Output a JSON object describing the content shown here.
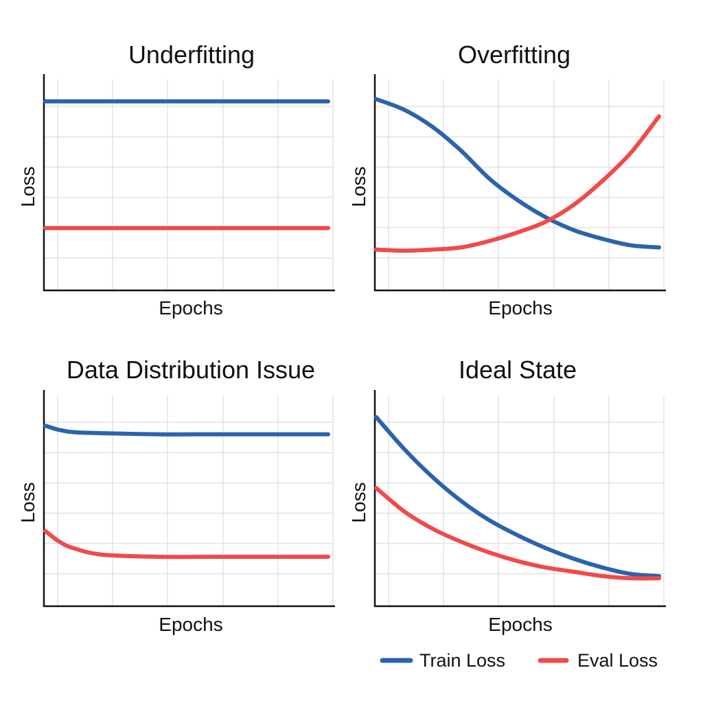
{
  "colors": {
    "train": "#2b63ad",
    "eval": "#f04a4a"
  },
  "legend": {
    "train_label": "Train Loss",
    "eval_label": "Eval Loss"
  },
  "chart_data": [
    {
      "type": "line",
      "title": "Underfitting",
      "xlabel": "Epochs",
      "ylabel": "Loss",
      "grid": true,
      "xlim": [
        0,
        10
      ],
      "ylim": [
        0,
        1
      ],
      "series": [
        {
          "name": "Train Loss",
          "x": [
            0,
            2,
            4,
            6,
            8,
            10
          ],
          "values": [
            0.88,
            0.88,
            0.88,
            0.88,
            0.88,
            0.88
          ]
        },
        {
          "name": "Eval Loss",
          "x": [
            0,
            2,
            4,
            6,
            8,
            10
          ],
          "values": [
            0.29,
            0.29,
            0.29,
            0.29,
            0.29,
            0.29
          ]
        }
      ]
    },
    {
      "type": "line",
      "title": "Overfitting",
      "xlabel": "Epochs",
      "ylabel": "Loss",
      "grid": true,
      "xlim": [
        0,
        10
      ],
      "ylim": [
        0,
        1
      ],
      "series": [
        {
          "name": "Train Loss",
          "x": [
            0,
            1,
            2,
            3,
            4,
            5,
            6,
            7,
            8,
            9,
            10
          ],
          "values": [
            0.89,
            0.84,
            0.76,
            0.65,
            0.52,
            0.42,
            0.34,
            0.28,
            0.24,
            0.21,
            0.2
          ]
        },
        {
          "name": "Eval Loss",
          "x": [
            0,
            1,
            2,
            3,
            4,
            5,
            6,
            7,
            8,
            9,
            10
          ],
          "values": [
            0.19,
            0.185,
            0.19,
            0.2,
            0.23,
            0.27,
            0.32,
            0.4,
            0.51,
            0.64,
            0.81
          ]
        }
      ]
    },
    {
      "type": "line",
      "title": "Data Distribution Issue",
      "xlabel": "Epochs",
      "ylabel": "Loss",
      "grid": true,
      "xlim": [
        0,
        10
      ],
      "ylim": [
        0,
        1
      ],
      "series": [
        {
          "name": "Train Loss",
          "x": [
            0,
            0.5,
            1,
            2,
            4,
            6,
            8,
            10
          ],
          "values": [
            0.84,
            0.82,
            0.81,
            0.805,
            0.8,
            0.8,
            0.8,
            0.8
          ]
        },
        {
          "name": "Eval Loss",
          "x": [
            0,
            0.5,
            1,
            2,
            4,
            6,
            8,
            10
          ],
          "values": [
            0.35,
            0.3,
            0.27,
            0.24,
            0.23,
            0.23,
            0.23,
            0.23
          ]
        }
      ]
    },
    {
      "type": "line",
      "title": "Ideal State",
      "xlabel": "Epochs",
      "ylabel": "Loss",
      "grid": true,
      "xlim": [
        0,
        10
      ],
      "ylim": [
        0,
        1
      ],
      "series": [
        {
          "name": "Train Loss",
          "x": [
            0,
            1,
            2,
            3,
            4,
            5,
            6,
            7,
            8,
            9,
            10
          ],
          "values": [
            0.88,
            0.73,
            0.6,
            0.49,
            0.4,
            0.33,
            0.27,
            0.22,
            0.18,
            0.15,
            0.14
          ]
        },
        {
          "name": "Eval Loss",
          "x": [
            0,
            1,
            2,
            3,
            4,
            5,
            6,
            7,
            8,
            9,
            10
          ],
          "values": [
            0.55,
            0.44,
            0.36,
            0.3,
            0.25,
            0.21,
            0.18,
            0.16,
            0.14,
            0.13,
            0.13
          ]
        }
      ]
    }
  ]
}
